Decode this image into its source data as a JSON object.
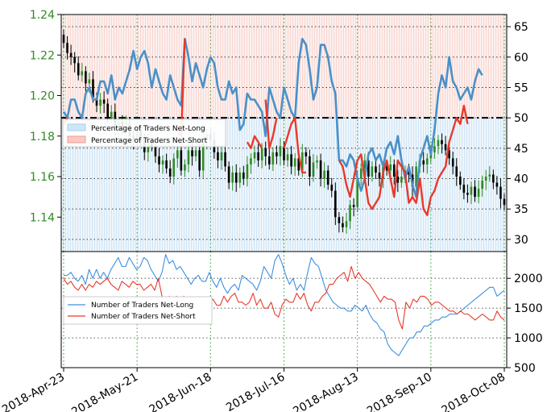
{
  "chart_data": [
    {
      "type": "candlestick+line",
      "title": "",
      "price_axis": {
        "side": "left",
        "color": "#2e8b22",
        "ylim": [
          1.123,
          1.24
        ],
        "ticks": [
          "1.24",
          "1.22",
          "1.20",
          "1.18",
          "1.16",
          "1.14"
        ]
      },
      "pct_axis": {
        "side": "right",
        "ylim": [
          28,
          67
        ],
        "ticks": [
          "65",
          "60",
          "55",
          "50",
          "45",
          "40",
          "35",
          "30"
        ]
      },
      "x_ticks": [
        "2018-Apr-23",
        "2018-May-21",
        "2018-Jun-18",
        "2018-Jul-16",
        "2018-Aug-13",
        "2018-Sep-10",
        "2018-Oct-08"
      ],
      "reference_line": 50,
      "legend": {
        "placement": "left",
        "entries": [
          "Percentage of Traders Net-Long",
          "Percentage of Traders Net-Short"
        ]
      },
      "colors": {
        "up": "#2e8b22",
        "down": "#000000",
        "net_long": "#4a90c8",
        "net_short": "#e8392b"
      },
      "price_close": [
        1.226,
        1.221,
        1.219,
        1.216,
        1.21,
        1.212,
        1.206,
        1.208,
        1.199,
        1.195,
        1.198,
        1.196,
        1.189,
        1.192,
        1.184,
        1.187,
        1.183,
        1.186,
        1.18,
        1.178,
        1.183,
        1.178,
        1.172,
        1.177,
        1.175,
        1.17,
        1.166,
        1.168,
        1.164,
        1.16,
        1.169,
        1.173,
        1.163,
        1.166,
        1.173,
        1.17,
        1.173,
        1.163,
        1.178,
        1.181,
        1.178,
        1.172,
        1.168,
        1.172,
        1.165,
        1.157,
        1.162,
        1.157,
        1.162,
        1.159,
        1.166,
        1.169,
        1.172,
        1.168,
        1.174,
        1.17,
        1.166,
        1.172,
        1.17,
        1.175,
        1.168,
        1.171,
        1.165,
        1.169,
        1.163,
        1.172,
        1.17,
        1.16,
        1.167,
        1.168,
        1.159,
        1.163,
        1.156,
        1.153,
        1.14,
        1.137,
        1.135,
        1.138,
        1.146,
        1.145,
        1.159,
        1.164,
        1.168,
        1.16,
        1.165,
        1.162,
        1.159,
        1.165,
        1.163,
        1.166,
        1.16,
        1.157,
        1.16,
        1.163,
        1.161,
        1.155,
        1.165,
        1.168,
        1.166,
        1.169,
        1.172,
        1.175,
        1.178,
        1.176,
        1.173,
        1.169,
        1.165,
        1.16,
        1.156,
        1.152,
        1.151,
        1.155,
        1.15,
        1.154,
        1.158,
        1.16,
        1.161,
        1.157,
        1.155,
        1.149,
        1.146
      ],
      "pct_net_long": [
        51,
        50,
        53,
        53,
        51,
        50,
        54,
        55,
        53,
        53,
        56,
        56,
        54,
        57,
        53,
        55,
        54,
        56,
        58,
        61,
        58,
        60,
        61,
        59,
        55,
        58,
        56,
        54,
        53,
        57,
        55,
        53,
        52,
        63,
        60,
        56,
        59,
        57,
        55,
        58,
        60,
        59,
        55,
        53,
        53,
        56,
        54,
        55,
        48,
        49,
        54,
        53,
        53,
        52,
        51,
        47,
        55,
        53,
        51,
        50,
        55,
        53,
        51,
        50,
        59,
        63,
        62,
        58,
        53,
        55,
        62,
        62,
        60,
        56,
        54,
        43,
        43,
        42,
        44,
        43,
        40,
        38,
        40,
        44,
        45,
        43,
        44,
        42,
        45,
        46,
        44,
        47,
        43,
        40,
        42,
        39,
        37,
        43,
        45,
        47,
        44,
        48,
        54,
        57,
        55,
        60,
        56,
        55,
        53,
        54,
        55,
        53,
        56,
        58,
        57
      ],
      "net_short_segments": [
        {
          "start": 0,
          "values": [
            49,
            50
          ]
        },
        {
          "start": 31,
          "values": [
            48,
            47,
            63
          ]
        },
        {
          "start": 50,
          "values": [
            46,
            45,
            47,
            46,
            45
          ]
        },
        {
          "start": 55,
          "values": [
            53,
            45,
            47,
            50
          ]
        },
        {
          "start": 60,
          "values": [
            45,
            47,
            49,
            50,
            44,
            41,
            41
          ]
        },
        {
          "start": 75,
          "values": [
            43,
            42,
            39,
            37,
            40,
            43,
            44,
            40,
            36,
            35,
            36,
            37,
            41,
            43,
            40,
            37,
            43,
            42,
            41,
            36,
            37,
            36,
            40,
            35,
            34,
            37,
            38,
            40,
            41,
            42,
            46,
            48,
            50,
            49,
            52,
            49
          ]
        }
      ]
    },
    {
      "type": "line",
      "yaxis": {
        "side": "right",
        "ylim": [
          500,
          2450
        ],
        "ticks": [
          "2000",
          "1500",
          "1000",
          "500"
        ]
      },
      "legend": {
        "placement": "left",
        "entries": [
          "Number of Traders Net-Long",
          "Number of Traders Net-Short"
        ]
      },
      "series": [
        {
          "name": "Number of Traders Net-Long",
          "color": "#3d8fe0",
          "values": [
            2050,
            2050,
            2100,
            2000,
            1950,
            2050,
            1900,
            2150,
            2000,
            2150,
            2000,
            2100,
            2000,
            2150,
            2250,
            2350,
            2200,
            2200,
            2350,
            2250,
            2150,
            2200,
            2350,
            2300,
            2150,
            2050,
            1950,
            2100,
            2400,
            2250,
            2300,
            2150,
            2200,
            2100,
            2000,
            1900,
            2000,
            2050,
            1950,
            1950,
            2100,
            1950,
            1850,
            2000,
            1850,
            1750,
            1850,
            1900,
            1800,
            2050,
            2000,
            1950,
            1900,
            1800,
            1950,
            2200,
            2100,
            2000,
            2300,
            2400,
            2250,
            2050,
            1900,
            2000,
            1800,
            1900,
            1800,
            2100,
            2350,
            2250,
            2200,
            2000,
            1800,
            1700,
            1600,
            1550,
            1500,
            1500,
            1450,
            1450,
            1550,
            1500,
            1450,
            1550,
            1400,
            1300,
            1250,
            1150,
            1100,
            900,
            800,
            750,
            700,
            800,
            900,
            1000,
            1000,
            1100,
            1100,
            1200,
            1200,
            1250,
            1300,
            1300,
            1350,
            1350,
            1400,
            1400,
            1400,
            1450,
            1500,
            1550,
            1600,
            1650,
            1700,
            1750,
            1800,
            1850,
            1850,
            1700,
            1750,
            1800
          ]
        },
        {
          "name": "Number of Traders Net-Short",
          "color": "#e8392b",
          "values": [
            2000,
            1900,
            1950,
            1850,
            1800,
            1900,
            1800,
            1900,
            1850,
            1950,
            1900,
            1950,
            2000,
            1900,
            1850,
            1800,
            1950,
            1900,
            1850,
            1950,
            1900,
            1900,
            1800,
            1850,
            1900,
            1800,
            2000,
            1700,
            1600,
            1700,
            1600,
            1700,
            1650,
            1700,
            1600,
            1500,
            1550,
            1600,
            1650,
            1500,
            1600,
            1650,
            1550,
            1550,
            1700,
            1600,
            1700,
            1750,
            1600,
            1600,
            1550,
            1600,
            1750,
            1550,
            1650,
            1500,
            1500,
            1600,
            1400,
            1350,
            1550,
            1650,
            1600,
            1600,
            1750,
            1650,
            1750,
            1550,
            1450,
            1600,
            1600,
            1700,
            1750,
            1900,
            1900,
            2000,
            2050,
            2100,
            1950,
            2200,
            2000,
            2100,
            2000,
            1950,
            1900,
            1800,
            1700,
            1600,
            1700,
            1650,
            1650,
            1600,
            1300,
            1150,
            1600,
            1500,
            1650,
            1600,
            1700,
            1700,
            1650,
            1550,
            1600,
            1600,
            1550,
            1500,
            1450,
            1450,
            1400,
            1450,
            1400,
            1400,
            1350,
            1300,
            1350,
            1400,
            1350,
            1300,
            1300,
            1450,
            1350,
            1300
          ]
        }
      ]
    }
  ]
}
